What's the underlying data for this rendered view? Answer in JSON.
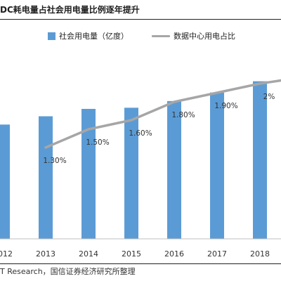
{
  "header": {
    "title": "DC耗电量占社会用电量比例逐年提升"
  },
  "footer": {
    "source": "T Research，国信证券经济研究所整理"
  },
  "colors": {
    "bars": "#5b9bd5",
    "line": "#a6a6a6",
    "axis": "#bfbfbf"
  },
  "chart_data": {
    "type": "bar",
    "categories": [
      "2012",
      "2013",
      "2014",
      "2015",
      "2016",
      "2017",
      "2018"
    ],
    "series": [
      {
        "name": "社会用电量（亿度）",
        "type": "bar",
        "values": [
          49600,
          53200,
          56400,
          56900,
          59800,
          63500,
          68400
        ]
      },
      {
        "name": "数据中心用电占比",
        "type": "line",
        "values": [
          null,
          1.3,
          1.5,
          1.6,
          1.8,
          1.9,
          2.0
        ],
        "labels": [
          "",
          "1.30%",
          "1.50%",
          "1.60%",
          "1.80%",
          "1.90%",
          "2%"
        ],
        "unit": "%"
      }
    ],
    "legend": "top",
    "grid": false
  }
}
